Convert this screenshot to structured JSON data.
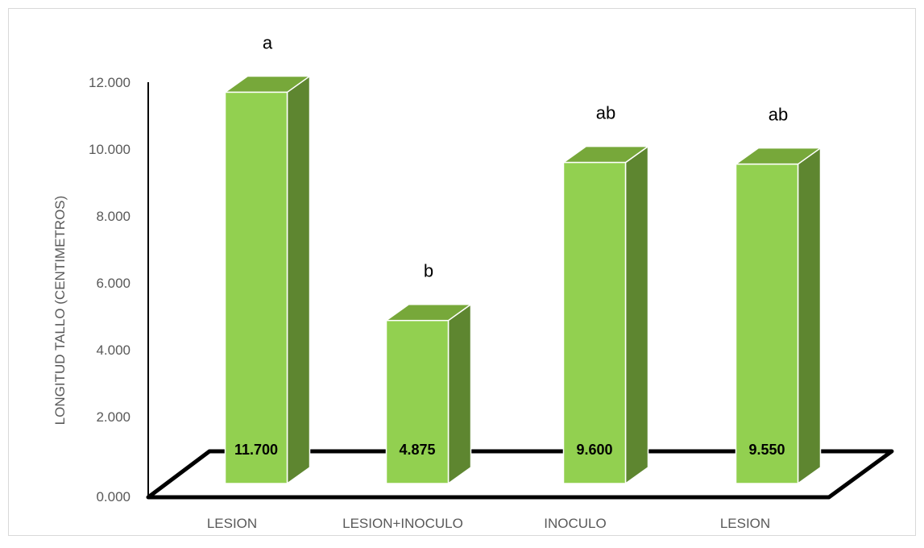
{
  "chart_data": {
    "type": "bar",
    "title": "",
    "xlabel": "",
    "ylabel": "LONGITUD TALLO (CENTIMETROS)",
    "categories": [
      "LESION",
      "LESION+INOCULO",
      "INOCULO",
      "LESION"
    ],
    "series": [
      {
        "values": [
          11.7,
          4.875,
          9.6,
          9.55
        ]
      }
    ],
    "data_labels": [
      "11.700",
      "4.875",
      "9.600",
      "9.550"
    ],
    "significance_letters": [
      "a",
      "b",
      "ab",
      "ab"
    ],
    "y_ticks": [
      "0.000",
      "2.000",
      "4.000",
      "6.000",
      "8.000",
      "10.000",
      "12.000"
    ],
    "ylim": [
      0,
      12
    ],
    "grid": false,
    "legend": "none",
    "three_d": true,
    "colors": {
      "bar_front": "#92D050",
      "bar_top": "#77A83A",
      "bar_side": "#5E8630",
      "floor": "#000000",
      "floor_fill": "#ffffff",
      "axis_text": "#595959",
      "border": "#D9D9D9"
    }
  }
}
